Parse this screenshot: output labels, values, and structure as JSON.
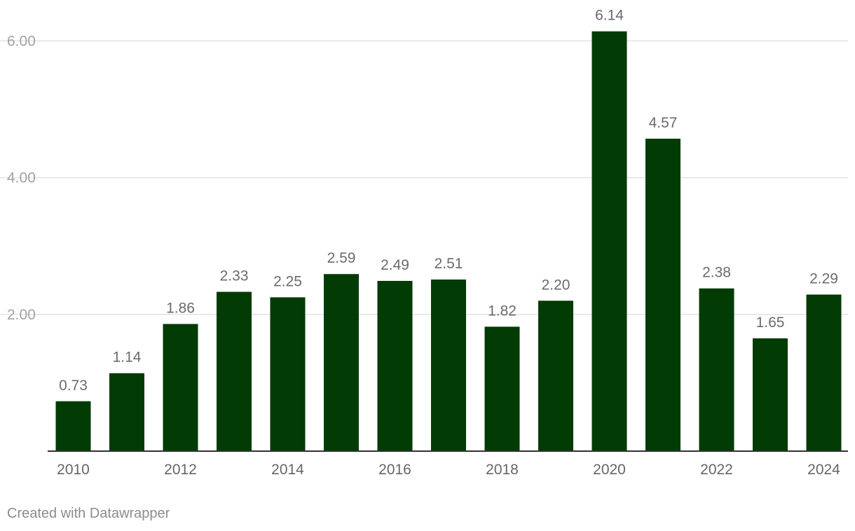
{
  "chart_data": {
    "type": "bar",
    "categories": [
      "2010",
      "2011",
      "2012",
      "2013",
      "2014",
      "2015",
      "2016",
      "2017",
      "2018",
      "2019",
      "2020",
      "2021",
      "2022",
      "2023",
      "2024"
    ],
    "values": [
      0.73,
      1.14,
      1.86,
      2.33,
      2.25,
      2.59,
      2.49,
      2.51,
      1.82,
      2.2,
      6.14,
      4.57,
      2.38,
      1.65,
      2.29
    ],
    "value_labels": [
      "0.73",
      "1.14",
      "1.86",
      "2.33",
      "2.25",
      "2.59",
      "2.49",
      "2.51",
      "1.82",
      "2.20",
      "6.14",
      "4.57",
      "2.38",
      "1.65",
      "2.29"
    ],
    "x_tick_labels": [
      "2010",
      "2012",
      "2014",
      "2016",
      "2018",
      "2020",
      "2022",
      "2024"
    ],
    "y_ticks": [
      2,
      4,
      6
    ],
    "y_tick_labels": [
      "2.00",
      "4.00",
      "6.00"
    ],
    "ylim": [
      0,
      6.14
    ],
    "grid": true,
    "legend": "none",
    "title": "",
    "xlabel": "",
    "ylabel": "",
    "colors": {
      "bar": "#033b05",
      "gridline": "#e3e3e3",
      "baseline": "#333333"
    }
  },
  "footer": {
    "credit": "Created with Datawrapper"
  }
}
